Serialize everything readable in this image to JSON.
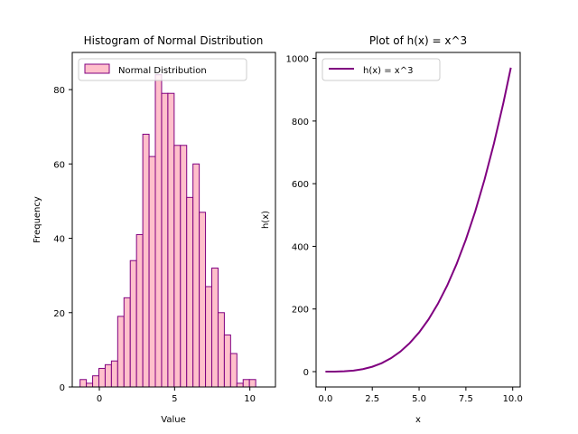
{
  "chart_data": [
    {
      "type": "bar",
      "title": "Histogram of Normal Distribution",
      "xlabel": "Value",
      "ylabel": "Frequency",
      "xlim": [
        -1.8,
        11.7
      ],
      "ylim": [
        0,
        90
      ],
      "xticks": [
        0,
        5,
        10
      ],
      "xtick_labels": [
        "0",
        "5",
        "10"
      ],
      "yticks": [
        0,
        20,
        40,
        60,
        80
      ],
      "ytick_labels": [
        "0",
        "20",
        "40",
        "60",
        "80"
      ],
      "bin_start": -1.28,
      "bin_width": 0.4167,
      "values": [
        2,
        1,
        3,
        5,
        6,
        7,
        19,
        24,
        34,
        41,
        68,
        62,
        84,
        79,
        79,
        65,
        65,
        51,
        60,
        47,
        27,
        32,
        20,
        14,
        9,
        1,
        2,
        2
      ],
      "series": [
        {
          "name": "Normal Distribution"
        }
      ],
      "legend": "upper left",
      "colors": {
        "fill": "#ffc0cb",
        "edge": "#800080"
      },
      "grid": false
    },
    {
      "type": "line",
      "title": "Plot of h(x) = x^3",
      "xlabel": "x",
      "ylabel": "h(x)",
      "xlim": [
        -0.5,
        10.4
      ],
      "ylim": [
        -49,
        1019
      ],
      "xticks": [
        0,
        2.5,
        5,
        7.5,
        10
      ],
      "xtick_labels": [
        "0.0",
        "2.5",
        "5.0",
        "7.5",
        "10.0"
      ],
      "yticks": [
        0,
        200,
        400,
        600,
        800,
        1000
      ],
      "ytick_labels": [
        "0",
        "200",
        "400",
        "600",
        "800",
        "1000"
      ],
      "x": [
        0,
        0.5,
        1,
        1.5,
        2,
        2.5,
        3,
        3.5,
        4,
        4.5,
        5,
        5.5,
        6,
        6.5,
        7,
        7.5,
        8,
        8.5,
        9,
        9.5,
        9.9
      ],
      "y": [
        0,
        0.125,
        1,
        3.375,
        8,
        15.625,
        27,
        42.875,
        64,
        91.125,
        125,
        166.375,
        216,
        274.625,
        343,
        421.875,
        512,
        614.125,
        729,
        857.375,
        970.3
      ],
      "series": [
        {
          "name": "h(x) = x^3"
        }
      ],
      "legend": "upper left",
      "colors": {
        "line": "#800080"
      },
      "grid": false
    }
  ]
}
